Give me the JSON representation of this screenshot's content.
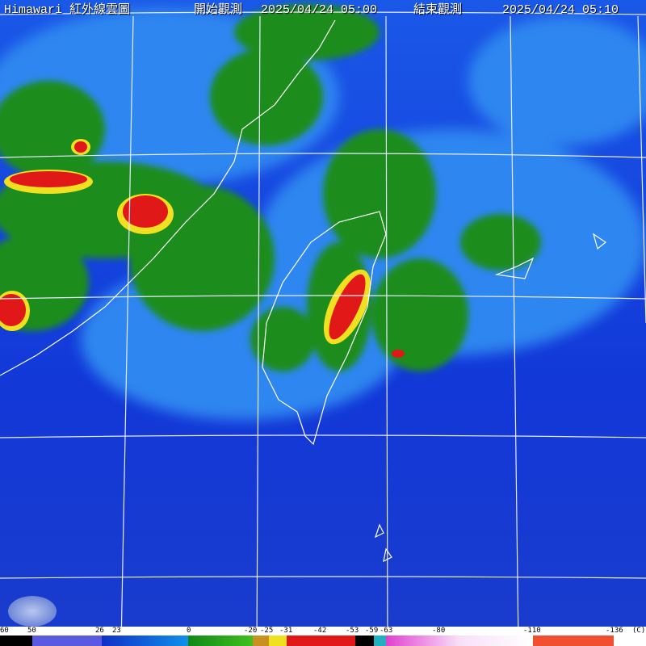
{
  "header": {
    "product": "Himawari 紅外線雲圖",
    "start_label": "開始觀測",
    "start_time": "2025/04/24 05:00",
    "end_label": "結束觀測",
    "end_time": "2025/04/24 05:10"
  },
  "scale": {
    "labels": [
      "60",
      "50",
      "26",
      "23",
      "0",
      "-20",
      "-25",
      "-31",
      "-42",
      "-53",
      "-59",
      "-63",
      "-80",
      "-110",
      "-136"
    ],
    "unit": "(C)"
  },
  "colors": {
    "ocean": "#1234d8",
    "cloud_low": "#2a6ee8",
    "cloud_green": "#1e8a1e",
    "yellow": "#f0e020",
    "red": "#e01818",
    "coast": "#ffffff"
  },
  "logo": "cwa-logo-icon"
}
